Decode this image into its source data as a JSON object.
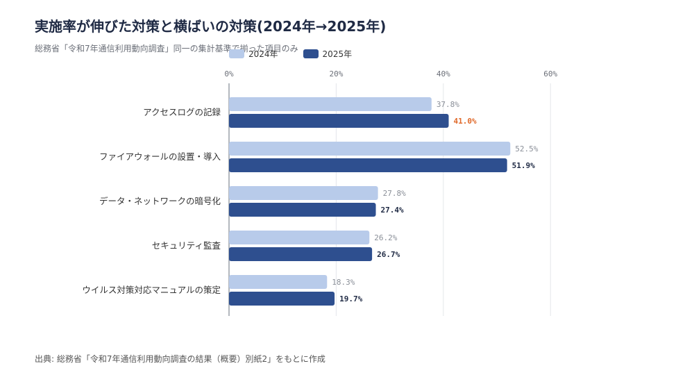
{
  "title": "実施率が伸びた対策と横ばいの対策(2024年→2025年)",
  "subtitle": "総務省「令和7年通信利用動向調査」同一の集計基準で揃った項目のみ",
  "footer": "出典: 総務省「令和7年通信利用動向調査の結果（概要）別紙2」をもとに作成",
  "colors": {
    "series_2024": "#b8cbea",
    "series_2025": "#2e4f8f",
    "highlight_label": "#e0692a",
    "grid": "#e4e6ea",
    "axis": "#9aa0a8"
  },
  "chart_data": {
    "type": "bar",
    "orientation": "horizontal",
    "categories": [
      "アクセスログの記録",
      "ファイアウォールの設置・導入",
      "データ・ネットワークの暗号化",
      "セキュリティ監査",
      "ウイルス対策対応マニュアルの策定"
    ],
    "series": [
      {
        "name": "2024年",
        "values": [
          37.8,
          52.5,
          27.8,
          26.2,
          18.3
        ],
        "labels": [
          "37.8%",
          "52.5%",
          "27.8%",
          "26.2%",
          "18.3%"
        ]
      },
      {
        "name": "2025年",
        "values": [
          41.0,
          51.9,
          27.4,
          26.7,
          19.7
        ],
        "labels": [
          "41.0%",
          "51.9%",
          "27.4%",
          "26.7%",
          "19.7%"
        ]
      }
    ],
    "highlighted_labels": [
      {
        "series": 1,
        "index": 0
      }
    ],
    "xlim": [
      0,
      60
    ],
    "xticks": [
      0,
      20,
      40,
      60
    ],
    "xtick_labels": [
      "0%",
      "20%",
      "40%",
      "60%"
    ],
    "grid": true,
    "legend_position": "top"
  }
}
